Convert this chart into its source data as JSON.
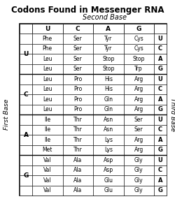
{
  "title": "Codons Found in Messenger RNA",
  "subtitle": "Second Base",
  "first_base_label": "First Base",
  "third_base_label": "Third Base",
  "col_headers": [
    "U",
    "C",
    "A",
    "G"
  ],
  "row_groups": [
    "U",
    "C",
    "A",
    "G"
  ],
  "third_base_labels": [
    "U",
    "C",
    "A",
    "G"
  ],
  "table_data": [
    [
      [
        "Phe",
        "Phe",
        "Leu",
        "Leu"
      ],
      [
        "Ser",
        "Ser",
        "Ser",
        "Ser"
      ],
      [
        "Tyr",
        "Tyr",
        "Stop",
        "Stop"
      ],
      [
        "Cys",
        "Cys",
        "Stop",
        "Trp"
      ]
    ],
    [
      [
        "Leu",
        "Leu",
        "Leu",
        "Leu"
      ],
      [
        "Pro",
        "Pro",
        "Pro",
        "Pro"
      ],
      [
        "His",
        "His",
        "Gln",
        "Gln"
      ],
      [
        "Arg",
        "Arg",
        "Arg",
        "Arg"
      ]
    ],
    [
      [
        "Ile",
        "Ile",
        "Ile",
        "Met"
      ],
      [
        "Thr",
        "Thr",
        "Thr",
        "Thr"
      ],
      [
        "Asn",
        "Asn",
        "Lys",
        "Lys"
      ],
      [
        "Ser",
        "Ser",
        "Arg",
        "Arg"
      ]
    ],
    [
      [
        "Val",
        "Val",
        "Val",
        "Val"
      ],
      [
        "Ala",
        "Ala",
        "Ala",
        "Ala"
      ],
      [
        "Asp",
        "Asp",
        "Glu",
        "Glu"
      ],
      [
        "Gly",
        "Gly",
        "Gly",
        "Gly"
      ]
    ]
  ],
  "bg_color": "#ffffff",
  "text_color": "#000000",
  "title_fontsize": 8.5,
  "subtitle_fontsize": 7.0,
  "cell_fontsize": 5.5,
  "header_fontsize": 6.5,
  "label_fontsize": 6.5,
  "group_label_fontsize": 6.5
}
